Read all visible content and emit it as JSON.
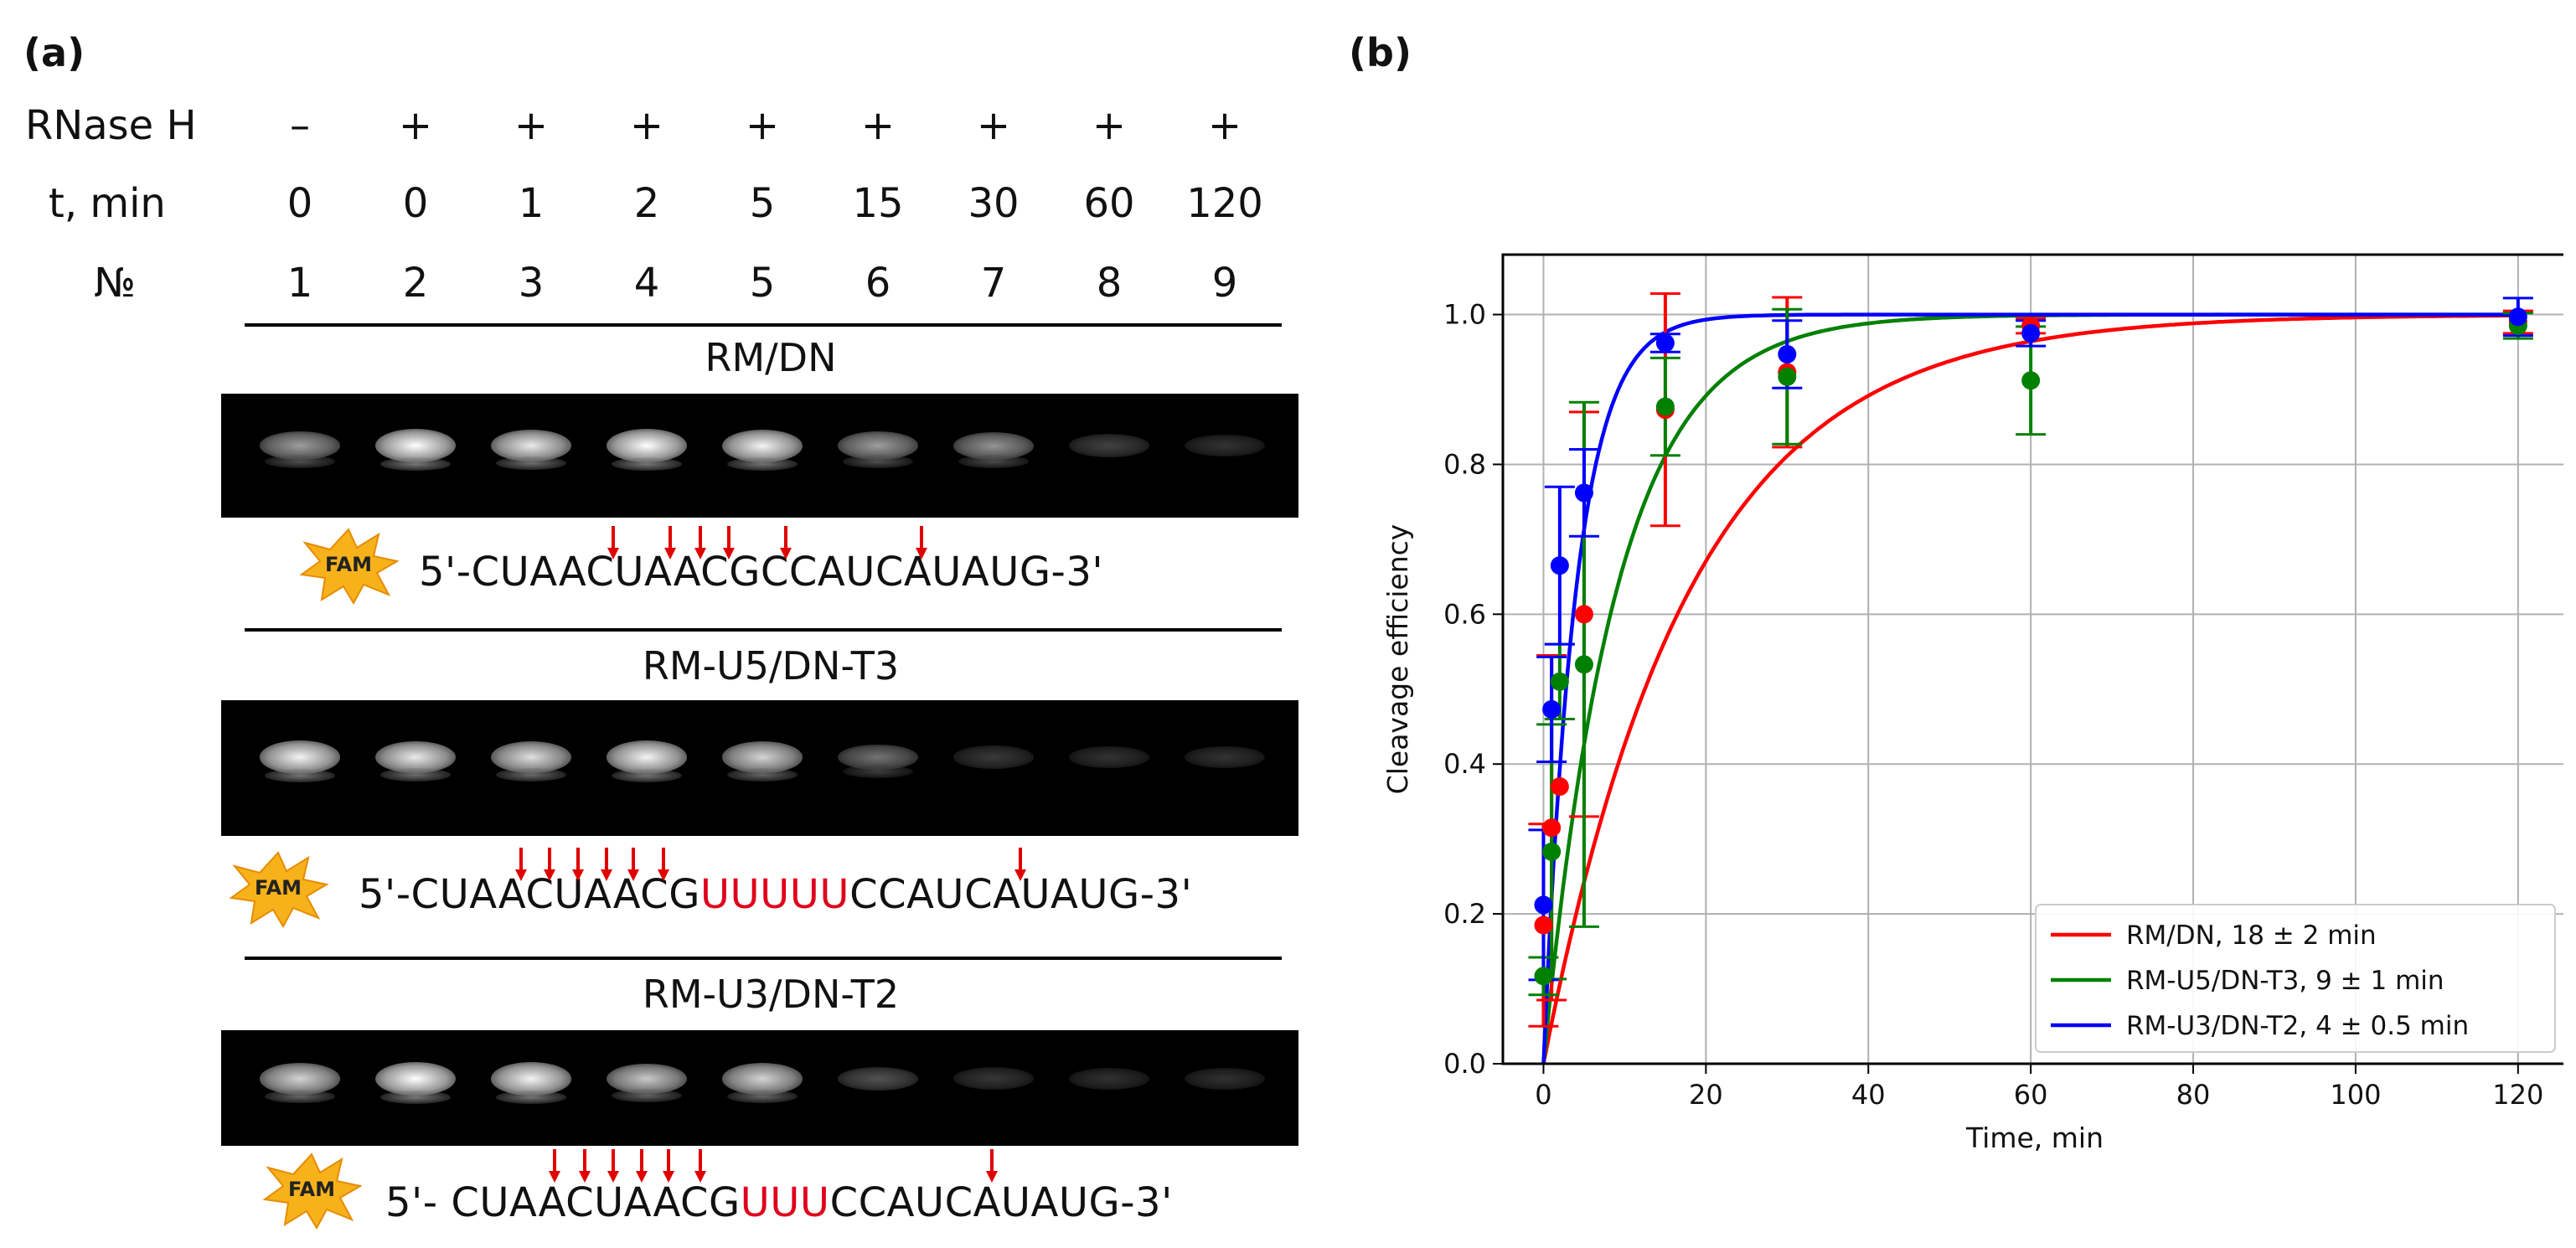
{
  "panel_a": {
    "letter": "(a)",
    "row_labels": {
      "rnase": "RNase H",
      "time": "t, min",
      "number": "№"
    },
    "rnase": [
      "–",
      "+",
      "+",
      "+",
      "+",
      "+",
      "+",
      "+",
      "+"
    ],
    "times": [
      "0",
      "0",
      "1",
      "2",
      "5",
      "15",
      "30",
      "60",
      "120"
    ],
    "lanes": [
      "1",
      "2",
      "3",
      "4",
      "5",
      "6",
      "7",
      "8",
      "9"
    ],
    "constructs": [
      {
        "name": "RM/DN",
        "seq_prefix": "5'-CUAACUAACGCCAUCAUAUG-3'",
        "seq_red": "",
        "seq_suffix": "",
        "fam": "FAM",
        "band_intensity": [
          0.55,
          1.0,
          0.9,
          1.0,
          0.95,
          0.55,
          0.5,
          0.12,
          0.05
        ]
      },
      {
        "name": "RM-U5/DN-T3",
        "seq_prefix": "5'-CUAACUAACG",
        "seq_red": "UUUUU",
        "seq_suffix": "CCAUCAUAUG-3'",
        "fam": "FAM",
        "band_intensity": [
          0.95,
          0.9,
          0.85,
          0.95,
          0.8,
          0.35,
          0.08,
          0.05,
          0.05
        ]
      },
      {
        "name": "RM-U3/DN-T2",
        "seq_prefix": "5'- CUAACUAACG",
        "seq_red": "UUU",
        "seq_suffix": "CCAUCAUAUG-3'",
        "fam": "FAM",
        "band_intensity": [
          0.8,
          1.0,
          0.95,
          0.75,
          0.8,
          0.2,
          0.07,
          0.04,
          0.04
        ]
      }
    ]
  },
  "panel_b": {
    "letter": "(b)"
  },
  "chart_data": {
    "type": "scatter",
    "xlabel": "Time, min",
    "ylabel": "Cleavage efficiency",
    "xlim": [
      -5,
      126
    ],
    "ylim": [
      0,
      1.08
    ],
    "xticks": [
      "0",
      "20",
      "40",
      "60",
      "80",
      "100",
      "120"
    ],
    "yticks": [
      "0.0",
      "0.2",
      "0.4",
      "0.6",
      "0.8",
      "1.0"
    ],
    "grid": true,
    "legend_position": "lower-right",
    "series": [
      {
        "name": "RM/DN, 18 ±  2 min",
        "color": "#ff0000",
        "tau": 18,
        "points": [
          {
            "x": 0,
            "y": 0.185,
            "err": 0.135
          },
          {
            "x": 1,
            "y": 0.315,
            "err": 0.23
          },
          {
            "x": 2,
            "y": 0.37,
            "err": 0.0
          },
          {
            "x": 5,
            "y": 0.6,
            "err": 0.27
          },
          {
            "x": 15,
            "y": 0.873,
            "err": 0.155
          },
          {
            "x": 30,
            "y": 0.923,
            "err": 0.1
          },
          {
            "x": 60,
            "y": 0.985,
            "err": 0.01
          },
          {
            "x": 120,
            "y": 0.99,
            "err": 0.015
          }
        ]
      },
      {
        "name": "RM-U5/DN-T3, 9 ±  1 min",
        "color": "#008000",
        "tau": 9,
        "points": [
          {
            "x": 0,
            "y": 0.117,
            "err": 0.025
          },
          {
            "x": 1,
            "y": 0.283,
            "err": 0.17
          },
          {
            "x": 2,
            "y": 0.51,
            "err": 0.05
          },
          {
            "x": 5,
            "y": 0.533,
            "err": 0.35
          },
          {
            "x": 15,
            "y": 0.877,
            "err": 0.065
          },
          {
            "x": 30,
            "y": 0.917,
            "err": 0.09
          },
          {
            "x": 60,
            "y": 0.912,
            "err": 0.072
          },
          {
            "x": 120,
            "y": 0.985,
            "err": 0.017
          }
        ]
      },
      {
        "name": "RM-U3/DN-T2, 4 ±  0.5 min",
        "color": "#0000ff",
        "tau": 4,
        "points": [
          {
            "x": 0,
            "y": 0.212,
            "err": 0.1
          },
          {
            "x": 1,
            "y": 0.473,
            "err": 0.07
          },
          {
            "x": 2,
            "y": 0.665,
            "err": 0.105
          },
          {
            "x": 5,
            "y": 0.762,
            "err": 0.058
          },
          {
            "x": 15,
            "y": 0.962,
            "err": 0.012
          },
          {
            "x": 30,
            "y": 0.947,
            "err": 0.045
          },
          {
            "x": 60,
            "y": 0.975,
            "err": 0.017
          },
          {
            "x": 120,
            "y": 0.997,
            "err": 0.025
          }
        ]
      }
    ]
  }
}
